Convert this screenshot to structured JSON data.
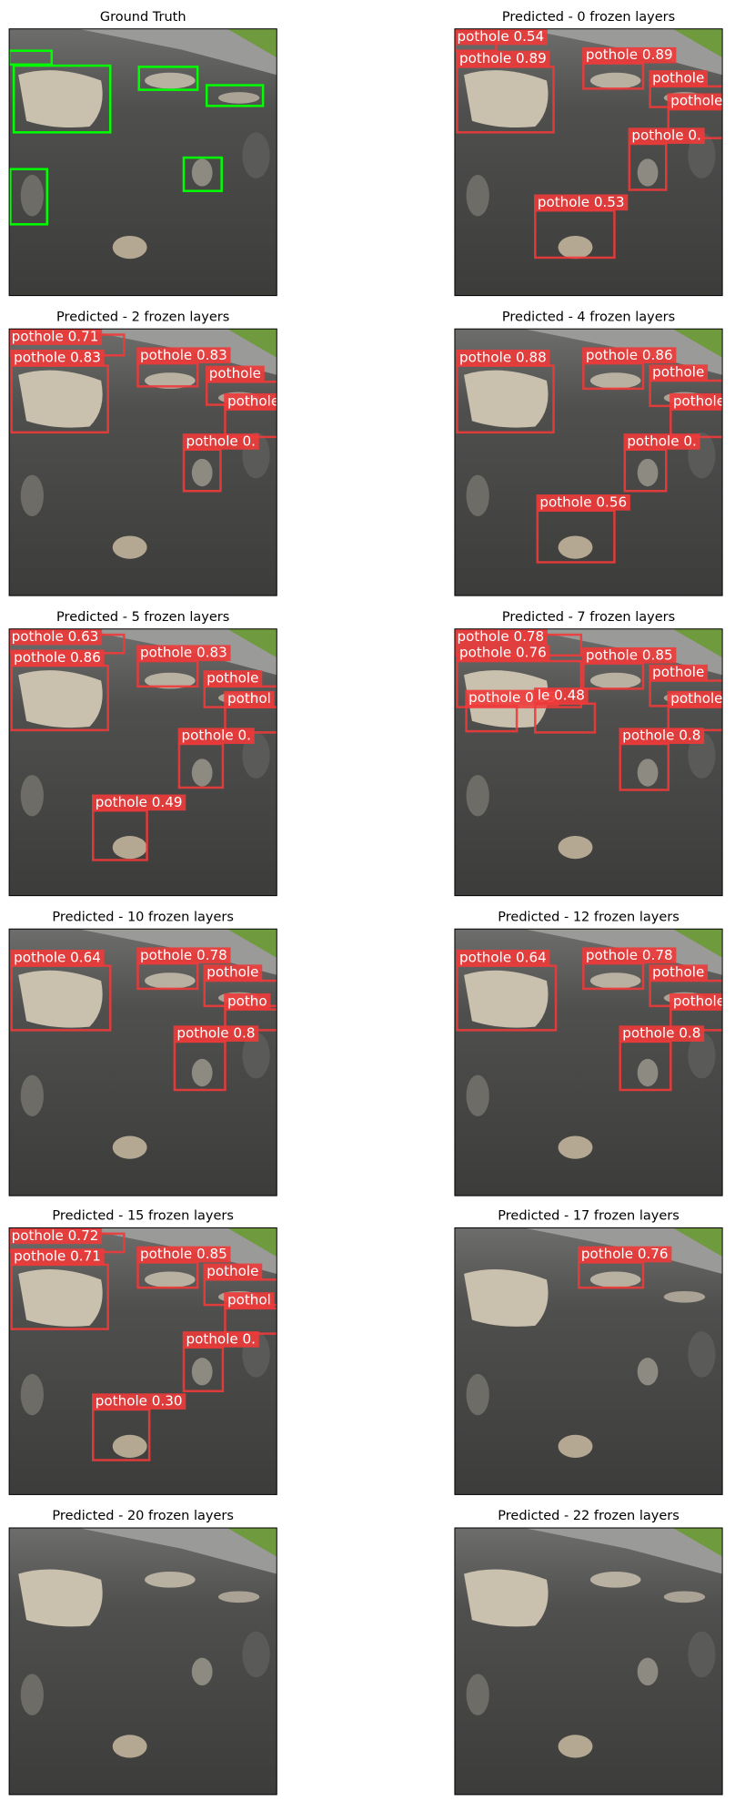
{
  "panels": [
    {
      "title": "Ground Truth"
    },
    {
      "title": "Predicted - 0 frozen layers",
      "boxes": [
        {
          "label": "pothole 0.54"
        },
        {
          "label": "pothole 0.89"
        },
        {
          "label": "pothole 0.89"
        },
        {
          "label": "pothole"
        },
        {
          "label": "pothole"
        },
        {
          "label": "pothole 0."
        },
        {
          "label": "pothole 0.53"
        }
      ]
    },
    {
      "title": "Predicted - 2 frozen layers",
      "boxes": [
        {
          "label": "pothole 0.71"
        },
        {
          "label": "pothole 0.83"
        },
        {
          "label": "pothole 0.83"
        },
        {
          "label": "pothole"
        },
        {
          "label": "pothole"
        },
        {
          "label": "pothole 0."
        }
      ]
    },
    {
      "title": "Predicted - 4 frozen layers",
      "boxes": [
        {
          "label": "pothole 0.88"
        },
        {
          "label": "pothole 0.86"
        },
        {
          "label": "pothole"
        },
        {
          "label": "pothole"
        },
        {
          "label": "pothole 0."
        },
        {
          "label": "pothole 0.56"
        }
      ]
    },
    {
      "title": "Predicted - 5 frozen layers",
      "boxes": [
        {
          "label": "pothole 0.63"
        },
        {
          "label": "pothole 0.86"
        },
        {
          "label": "pothole 0.83"
        },
        {
          "label": "pothole"
        },
        {
          "label": "pothol"
        },
        {
          "label": "pothole 0."
        },
        {
          "label": "pothole 0.49"
        }
      ]
    },
    {
      "title": "Predicted - 7 frozen layers",
      "boxes": [
        {
          "label": "pothole 0.78"
        },
        {
          "label": "pothole 0.76"
        },
        {
          "label": "pothole 0.85"
        },
        {
          "label": "pothole"
        },
        {
          "label": "pothole 0.55"
        },
        {
          "label": "le 0.48"
        },
        {
          "label": "pothole"
        },
        {
          "label": "pothole 0.8"
        }
      ]
    },
    {
      "title": "Predicted - 10 frozen layers",
      "boxes": [
        {
          "label": "pothole 0.64"
        },
        {
          "label": "pothole 0.78"
        },
        {
          "label": "pothole"
        },
        {
          "label": "potho"
        },
        {
          "label": "pothole 0.8"
        }
      ]
    },
    {
      "title": "Predicted - 12 frozen layers",
      "boxes": [
        {
          "label": "pothole 0.64"
        },
        {
          "label": "pothole 0.78"
        },
        {
          "label": "pothole"
        },
        {
          "label": "pothole"
        },
        {
          "label": "pothole 0.8"
        }
      ]
    },
    {
      "title": "Predicted - 15 frozen layers",
      "boxes": [
        {
          "label": "pothole 0.72"
        },
        {
          "label": "pothole 0.71"
        },
        {
          "label": "pothole 0.85"
        },
        {
          "label": "pothole"
        },
        {
          "label": "pothol"
        },
        {
          "label": "pothole 0."
        },
        {
          "label": "pothole 0.30"
        }
      ]
    },
    {
      "title": "Predicted - 17 frozen layers",
      "boxes": [
        {
          "label": "pothole 0.76"
        }
      ]
    },
    {
      "title": "Predicted - 20 frozen layers"
    },
    {
      "title": "Predicted - 22 frozen layers"
    }
  ]
}
